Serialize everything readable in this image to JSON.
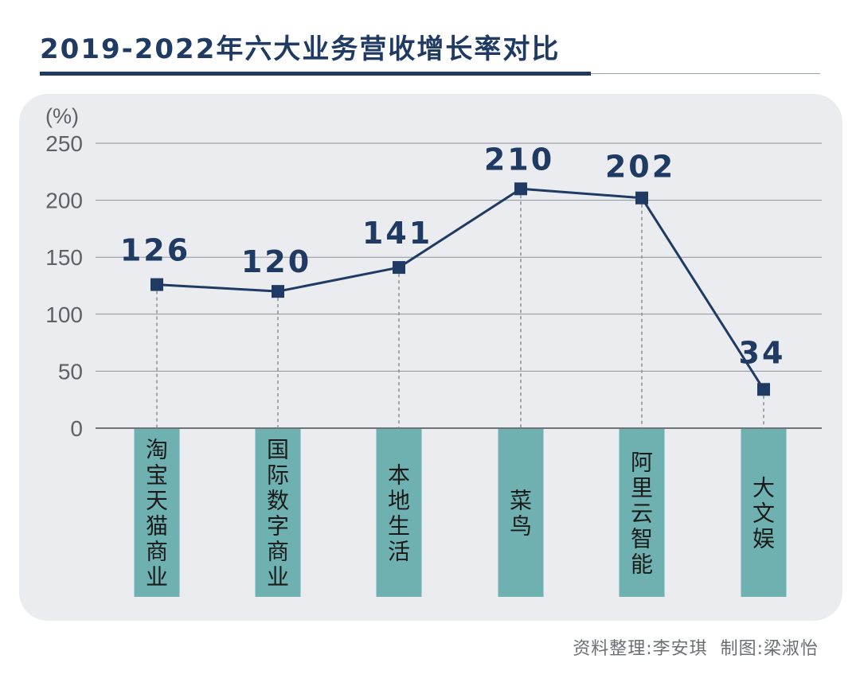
{
  "header": {
    "title": "2019-2022年六大业务营收增长率对比"
  },
  "footer": {
    "credit": "资料整理:李安琪  制图:梁淑怡"
  },
  "colors": {
    "navy": "#1f3a63",
    "teal": "#6fb1b1",
    "grid": "#8d9299",
    "panel": "#eaecf0"
  },
  "chart_data": {
    "type": "line",
    "title": "2019-2022年六大业务营收增长率对比",
    "unit_label": "(%)",
    "ylim": [
      0,
      250
    ],
    "yticks": [
      0,
      50,
      100,
      150,
      200,
      250
    ],
    "grid": true,
    "categories": [
      "淘宝天猫商业",
      "国际数字商业",
      "本地生活",
      "菜鸟",
      "阿里云智能",
      "大文娱"
    ],
    "series": [
      {
        "values": [
          126,
          120,
          141,
          210,
          202,
          34
        ]
      }
    ],
    "data_labels": [
      "126",
      "120",
      "141",
      "210",
      "202",
      "34"
    ]
  }
}
